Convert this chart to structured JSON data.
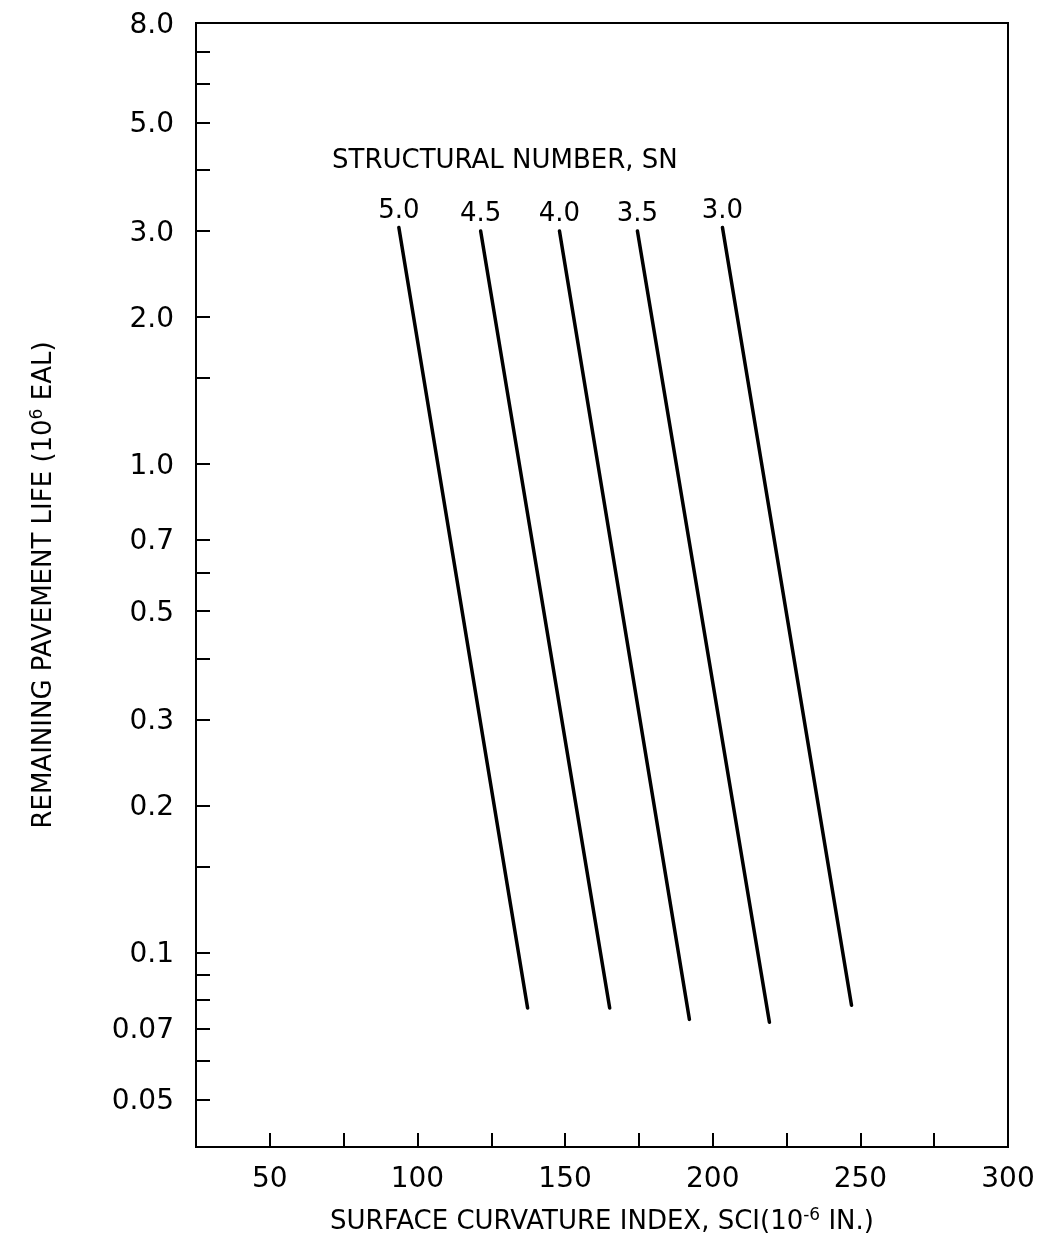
{
  "chart_data": {
    "type": "line",
    "xlabel": "SURFACE CURVATURE INDEX, SCI(10$^{-6}$ IN.)",
    "ylabel": "REMAINING PAVEMENT LIFE (10$^{6}$ EAL)",
    "legend_title": "STRUCTURAL NUMBER, SN",
    "log": "y",
    "marker": "none",
    "line_style": "solid",
    "xlim": [
      25,
      300
    ],
    "xticks": [
      {
        "value": 25,
        "label": null
      },
      50,
      {
        "value": 75,
        "label": null
      },
      100,
      {
        "value": 125,
        "label": null
      },
      150,
      {
        "value": 175,
        "label": null
      },
      200,
      {
        "value": 225,
        "label": null
      },
      250,
      {
        "value": 275,
        "label": null
      },
      300
    ],
    "ylim": [
      0.04,
      8
    ],
    "yticks": [
      {
        "value": 8,
        "label": "8.0"
      },
      {
        "value": 7,
        "label": null
      },
      {
        "value": 6,
        "label": null
      },
      {
        "value": 5,
        "label": "5.0"
      },
      {
        "value": 4,
        "label": null
      },
      {
        "value": 3,
        "label": "3.0"
      },
      {
        "value": 2,
        "label": "2.0"
      },
      {
        "value": 1.5,
        "label": null
      },
      {
        "value": 1,
        "label": "1.0"
      },
      0.7,
      {
        "value": 0.6,
        "label": null
      },
      0.5,
      {
        "value": 0.4,
        "label": null
      },
      0.3,
      0.2,
      {
        "value": 0.15,
        "label": null
      },
      0.1,
      {
        "value": 0.09,
        "label": null
      },
      {
        "value": 0.08,
        "label": null
      },
      0.07,
      {
        "value": 0.06,
        "label": null
      },
      0.05
    ],
    "series": [
      {
        "name": "5.0",
        "color": "#000000",
        "x": [
          93.7,
          137.3
        ],
        "values": [
          3.05,
          0.077
        ]
      },
      {
        "name": "4.5",
        "color": "#000000",
        "x": [
          121.4,
          165.1
        ],
        "values": [
          3.0,
          0.077
        ]
      },
      {
        "name": "4.0",
        "color": "#000000",
        "x": [
          148.1,
          192.1
        ],
        "values": [
          3.0,
          0.073
        ]
      },
      {
        "name": "3.5",
        "color": "#000000",
        "x": [
          174.5,
          219.2
        ],
        "values": [
          3.0,
          0.072
        ]
      },
      {
        "name": "3.0",
        "color": "#000000",
        "x": [
          203.3,
          247.0
        ],
        "values": [
          3.05,
          0.078
        ]
      }
    ]
  }
}
